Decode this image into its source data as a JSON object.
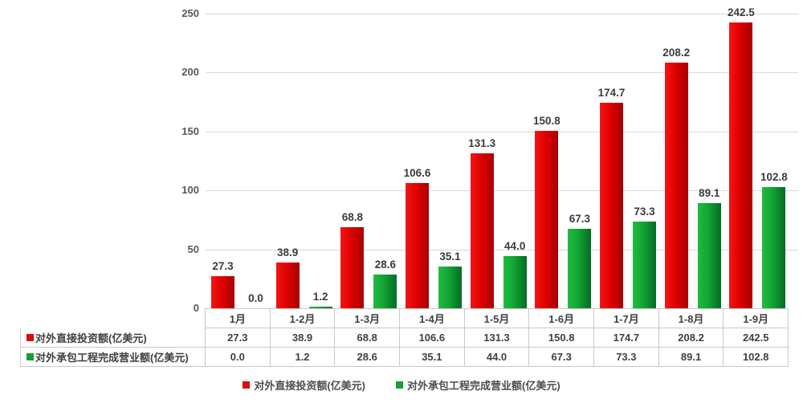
{
  "chart_data": {
    "type": "bar",
    "categories": [
      "1月",
      "1-2月",
      "1-3月",
      "1-4月",
      "1-5月",
      "1-6月",
      "1-7月",
      "1-8月",
      "1-9月"
    ],
    "series": [
      {
        "name": "对外直接投资额(亿美元)",
        "swatch_color": "#dd0b0b",
        "values": [
          27.3,
          38.9,
          68.8,
          106.6,
          131.3,
          150.8,
          174.7,
          208.2,
          242.5
        ]
      },
      {
        "name": "对外承包工程完成营业额(亿美元)",
        "swatch_color": "#12a137",
        "values": [
          0.0,
          1.2,
          28.6,
          35.1,
          44.0,
          67.3,
          73.3,
          89.1,
          102.8
        ]
      }
    ],
    "title": "",
    "xlabel": "",
    "ylabel": "",
    "ylim": [
      0,
      250
    ],
    "yticks": [
      0,
      50,
      100,
      150,
      200,
      250
    ],
    "grid": true,
    "legend_position": "bottom",
    "data_table_shown": true
  },
  "legend": {
    "items": [
      {
        "label": "对外直接投资额(亿美元)",
        "color": "#dd0b0b"
      },
      {
        "label": "对外承包工程完成营业额(亿美元)",
        "color": "#12a137"
      }
    ]
  }
}
